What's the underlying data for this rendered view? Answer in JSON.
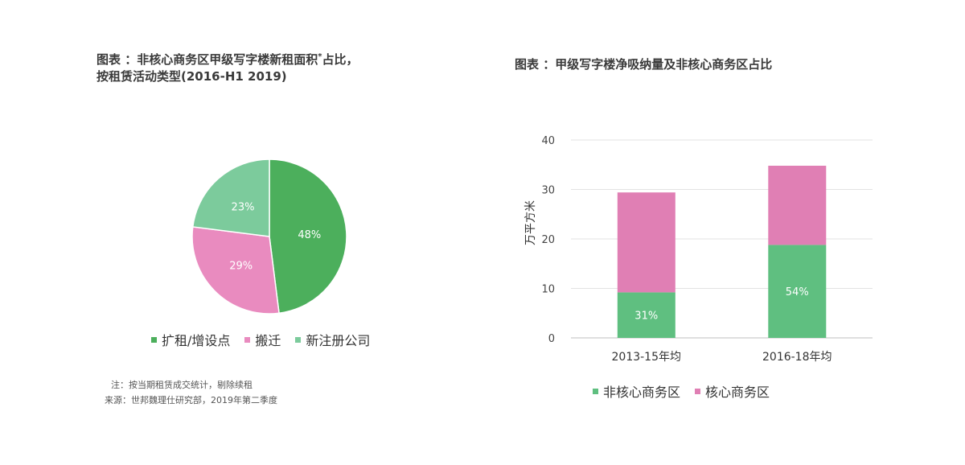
{
  "left_panel": {
    "title_line1": "图表 ：非核心商务区甲级写字楼新租面积",
    "title_sup": "*",
    "title_line1_end": "占比，",
    "title_line2": "按租赁活动类型(2016-H1 2019)",
    "notes": {
      "note": "注：按当期租赁成交统计，剔除续租",
      "source": "来源：世邦魏理仕研究部，2019年第二季度"
    }
  },
  "right_panel": {
    "title": "图表 ：甲级写字楼净吸纳量及非核心商务区占比"
  },
  "chart_data": [
    {
      "type": "pie",
      "labels": [
        "扩租/增设点",
        "搬迁",
        "新注册公司"
      ],
      "values": [
        48,
        29,
        23
      ],
      "data_labels": [
        "48%",
        "29%",
        "23%"
      ],
      "colors": [
        "#4caf5c",
        "#e98bbf",
        "#7ccb9c"
      ],
      "legend": [
        "扩租/增设点",
        "搬迁",
        "新注册公司"
      ],
      "legend_position": "bottom"
    },
    {
      "type": "bar",
      "stacked": true,
      "categories": [
        "2013-15年均",
        "2016-18年均"
      ],
      "series": [
        {
          "name": "非核心商务区",
          "values": [
            9.2,
            18.8
          ],
          "labels": [
            "31%",
            "54%"
          ],
          "color": "#5fbf80"
        },
        {
          "name": "核心商务区",
          "values": [
            20.2,
            16.0
          ],
          "color": "#e07fb4"
        }
      ],
      "ylabel": "万平方米",
      "ylim": [
        0,
        40
      ],
      "yticks": [
        "0",
        "10",
        "20",
        "30",
        "40"
      ],
      "grid": true,
      "legend_position": "bottom"
    }
  ]
}
